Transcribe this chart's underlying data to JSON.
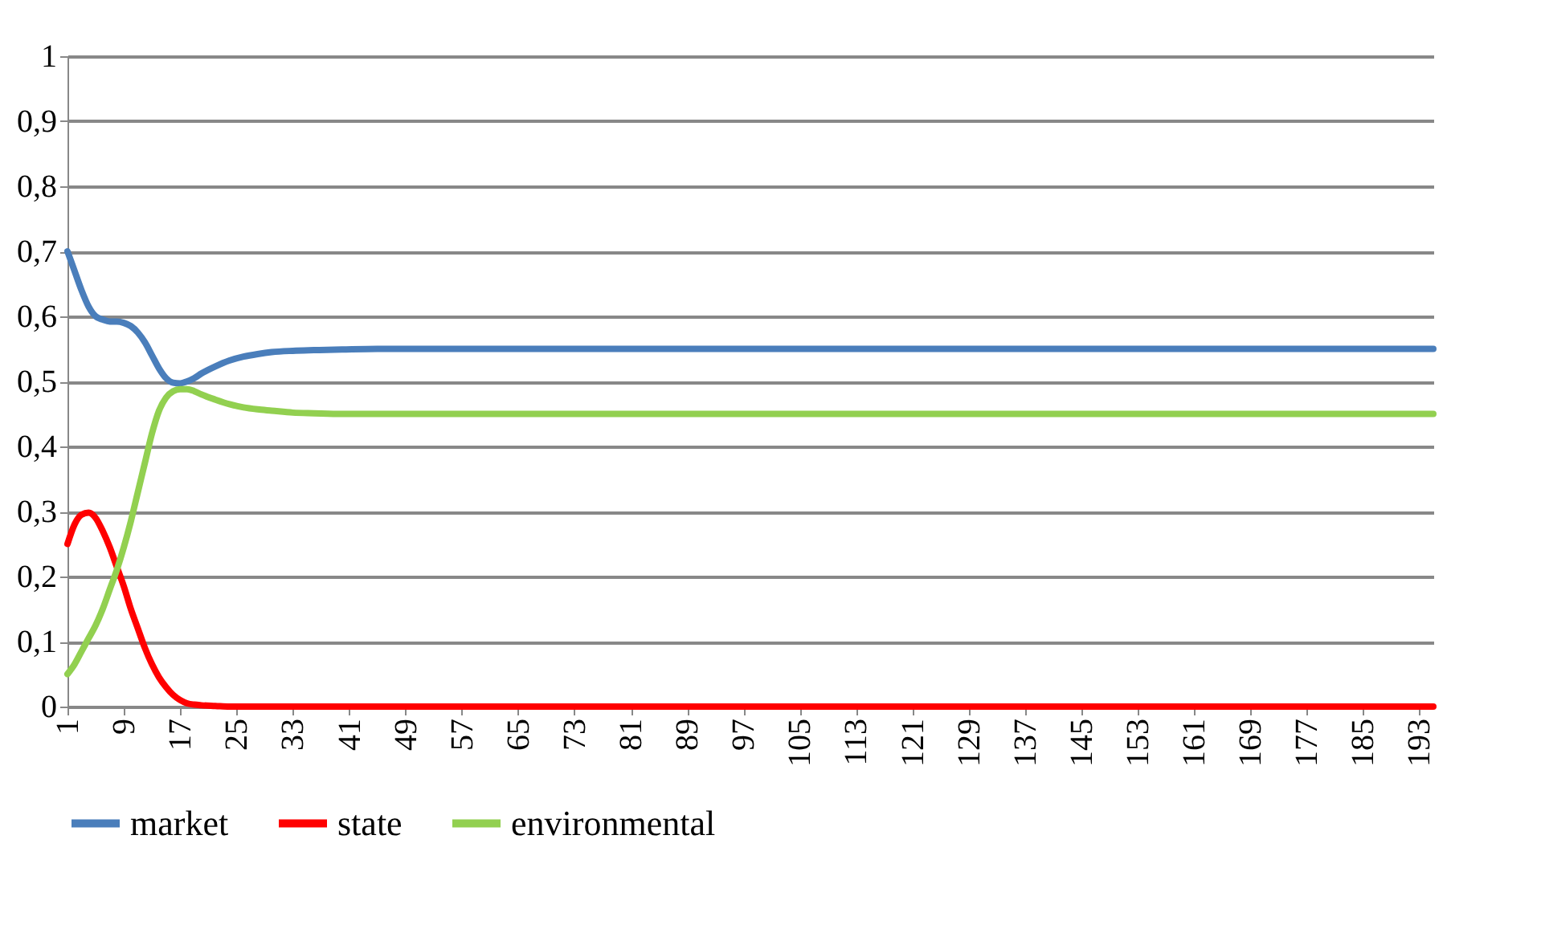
{
  "chart_data": {
    "type": "line",
    "xlim": [
      1,
      195
    ],
    "xticks": [
      1,
      9,
      17,
      25,
      33,
      41,
      49,
      57,
      65,
      73,
      81,
      89,
      97,
      105,
      113,
      121,
      129,
      137,
      145,
      153,
      161,
      169,
      177,
      185,
      193
    ],
    "ylim": [
      0,
      1
    ],
    "yticks": [
      {
        "value": 0,
        "label": "0"
      },
      {
        "value": 0.1,
        "label": "0,1"
      },
      {
        "value": 0.2,
        "label": "0,2"
      },
      {
        "value": 0.3,
        "label": "0,3"
      },
      {
        "value": 0.4,
        "label": "0,4"
      },
      {
        "value": 0.5,
        "label": "0,5"
      },
      {
        "value": 0.6,
        "label": "0,6"
      },
      {
        "value": 0.7,
        "label": "0,7"
      },
      {
        "value": 0.8,
        "label": "0,8"
      },
      {
        "value": 0.9,
        "label": "0,9"
      },
      {
        "value": 1,
        "label": "1"
      }
    ],
    "grid": "y",
    "legend": "bottom",
    "marker": "none",
    "line_style": "solid",
    "series": [
      {
        "name": "market",
        "color": "#4a7ebb",
        "x": [
          1,
          2,
          3,
          4,
          5,
          6,
          7,
          8,
          9,
          10,
          11,
          12,
          13,
          14,
          15,
          16,
          17,
          18,
          19,
          20,
          22,
          24,
          26,
          28,
          30,
          33,
          36,
          40,
          45,
          60,
          100,
          150,
          195
        ],
        "values": [
          0.7,
          0.67,
          0.64,
          0.615,
          0.6,
          0.595,
          0.592,
          0.592,
          0.59,
          0.585,
          0.575,
          0.56,
          0.54,
          0.52,
          0.505,
          0.498,
          0.497,
          0.5,
          0.505,
          0.512,
          0.523,
          0.532,
          0.538,
          0.542,
          0.545,
          0.547,
          0.548,
          0.549,
          0.55,
          0.55,
          0.55,
          0.55,
          0.55
        ]
      },
      {
        "name": "state",
        "color": "#ff0000",
        "x": [
          1,
          2,
          3,
          4,
          5,
          6,
          7,
          8,
          9,
          10,
          11,
          12,
          13,
          14,
          15,
          16,
          17,
          18,
          19,
          20,
          22,
          24,
          28,
          40,
          100,
          150,
          195
        ],
        "values": [
          0.25,
          0.28,
          0.295,
          0.298,
          0.29,
          0.27,
          0.245,
          0.215,
          0.185,
          0.15,
          0.12,
          0.09,
          0.065,
          0.045,
          0.03,
          0.018,
          0.01,
          0.005,
          0.003,
          0.002,
          0.001,
          0,
          0,
          0,
          0,
          0,
          0
        ]
      },
      {
        "name": "environmental",
        "color": "#92d050",
        "x": [
          1,
          2,
          3,
          4,
          5,
          6,
          7,
          8,
          9,
          10,
          11,
          12,
          13,
          14,
          15,
          16,
          17,
          18,
          19,
          20,
          22,
          24,
          26,
          28,
          30,
          33,
          36,
          40,
          45,
          60,
          100,
          150,
          195
        ],
        "values": [
          0.05,
          0.065,
          0.085,
          0.105,
          0.125,
          0.15,
          0.18,
          0.21,
          0.245,
          0.285,
          0.33,
          0.375,
          0.42,
          0.455,
          0.475,
          0.485,
          0.488,
          0.488,
          0.485,
          0.48,
          0.472,
          0.465,
          0.46,
          0.457,
          0.455,
          0.452,
          0.451,
          0.45,
          0.45,
          0.45,
          0.45,
          0.45,
          0.45
        ]
      }
    ]
  }
}
